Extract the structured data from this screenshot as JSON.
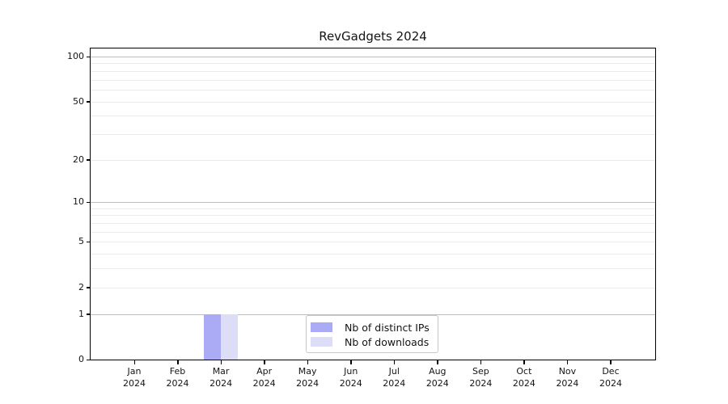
{
  "title": "RevGadgets 2024",
  "colors": {
    "bar_distinct_ips": "#aaaaf5",
    "bar_downloads": "#ddddf8",
    "grid_major": "#bdbdbd",
    "grid_minor": "#ebebeb",
    "axis": "#000000",
    "legend_border": "#c8c8c8",
    "background": "#ffffff"
  },
  "chart_data": {
    "type": "bar",
    "title": "RevGadgets 2024",
    "categories": [
      "Jan",
      "Feb",
      "Mar",
      "Apr",
      "May",
      "Jun",
      "Jul",
      "Aug",
      "Sep",
      "Oct",
      "Nov",
      "Dec"
    ],
    "year": "2024",
    "series": [
      {
        "name": "Nb of distinct IPs",
        "color": "#aaaaf5",
        "values": [
          0,
          0,
          1,
          0,
          0,
          0,
          0,
          0,
          0,
          0,
          0,
          0
        ]
      },
      {
        "name": "Nb of downloads",
        "color": "#ddddf8",
        "values": [
          0,
          0,
          1,
          0,
          0,
          0,
          0,
          0,
          0,
          0,
          0,
          0
        ]
      }
    ],
    "xlabel": "",
    "ylabel": "",
    "yscale": "log1p",
    "yticks": [
      0,
      1,
      2,
      5,
      10,
      20,
      50,
      100
    ],
    "ylim": [
      0,
      113
    ],
    "grid": true,
    "legend_position": "lower center"
  }
}
